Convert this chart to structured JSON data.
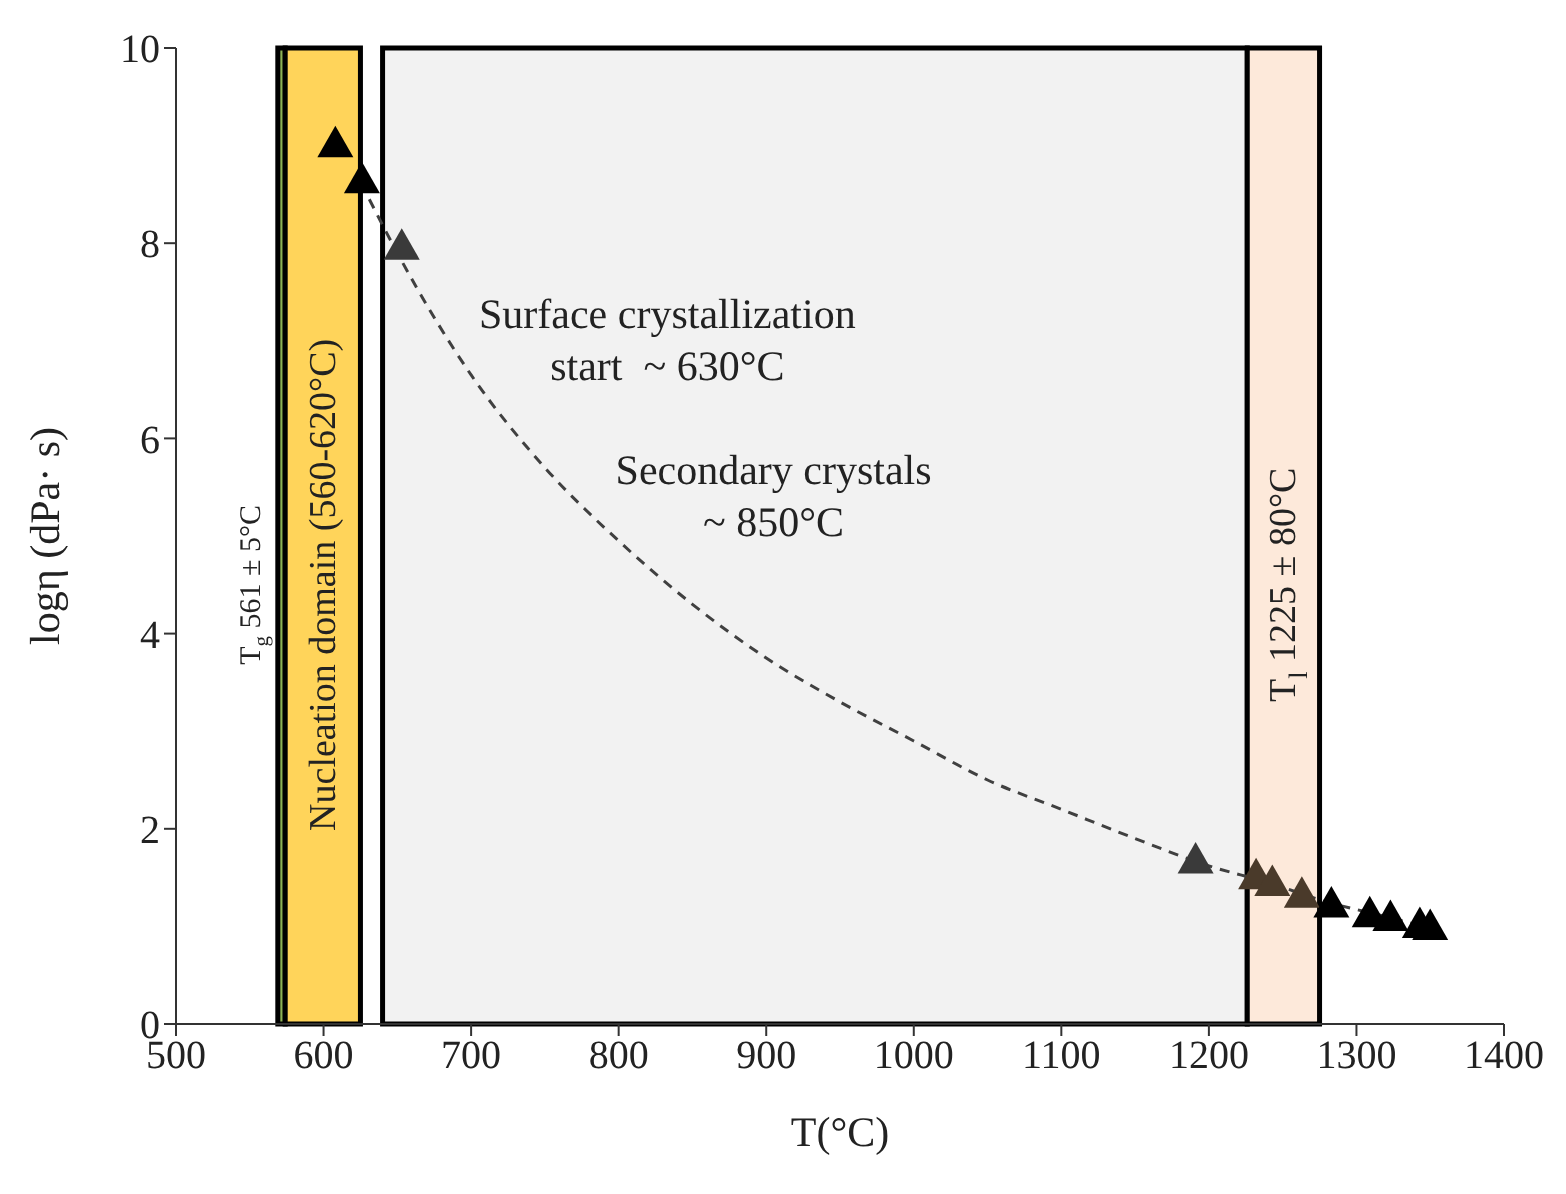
{
  "chart_data": {
    "type": "scatter",
    "xlabel": "T(°C)",
    "ylabel": "logη  (dPa· s)",
    "xlim": [
      500,
      1400
    ],
    "xticks": [
      500,
      600,
      700,
      800,
      900,
      1000,
      1100,
      1200,
      1300,
      1400
    ],
    "ylim": [
      0,
      10
    ],
    "yticks": [
      0,
      2,
      4,
      6,
      8,
      10
    ],
    "marker": "triangle",
    "series": [
      {
        "color": "#000000",
        "colors": [
          "#000000",
          "#000000",
          "#3a3a3a",
          "#3a3a3a",
          "#4a3a2a",
          "#4a3a2a",
          "#4a3a2a",
          "#000000",
          "#000000",
          "#000000",
          "#000000",
          "#000000"
        ],
        "x": [
          608,
          626,
          653,
          1191,
          1232,
          1243,
          1263,
          1283,
          1309,
          1323,
          1343,
          1350
        ],
        "values": [
          9.02,
          8.65,
          7.97,
          1.68,
          1.52,
          1.45,
          1.33,
          1.23,
          1.13,
          1.09,
          1.02,
          1.0
        ]
      },
      {
        "type": "line",
        "color": "#404040",
        "line_style": "dashed",
        "marker": "none",
        "x": [
          631,
          650,
          700,
          750,
          800,
          850,
          900,
          950,
          1000,
          1050,
          1100,
          1150,
          1200,
          1240,
          1280,
          1320,
          1345
        ],
        "values": [
          8.45,
          7.9,
          6.65,
          5.7,
          4.95,
          4.3,
          3.75,
          3.3,
          2.9,
          2.5,
          2.2,
          1.9,
          1.62,
          1.45,
          1.25,
          1.1,
          1.0
        ]
      }
    ],
    "bands": [
      {
        "axis": "x",
        "from": 569,
        "to": 574,
        "color": "#8db255",
        "label": "T$_{g}$ 561 ± 5°C"
      },
      {
        "axis": "x",
        "from": 574,
        "to": 625,
        "color": "#ffd45a",
        "label": "Nucleation domain (560-620°C)"
      },
      {
        "axis": "x",
        "from": 640,
        "to": 1226,
        "color": "#f2f2f2"
      },
      {
        "axis": "x",
        "from": 1226,
        "to": 1275,
        "color": "#fde9da",
        "label": "T$_{l}$ 1225 ± 80°C"
      }
    ],
    "annotations": [
      "Surface crystallization\nstart  ~ 630°C",
      "Secondary crystals\n~ 850°C"
    ]
  }
}
